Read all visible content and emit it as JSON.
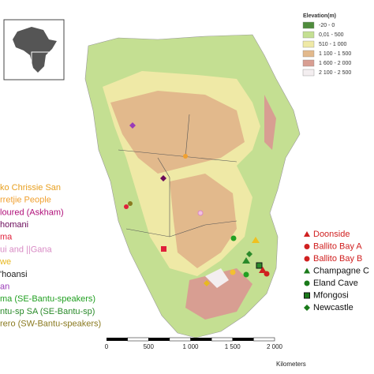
{
  "elevation_legend": {
    "title": "Elevation(m)",
    "classes": [
      {
        "label": "-20 - 0",
        "color": "#4f8c3c"
      },
      {
        "label": "0,01 - 500",
        "color": "#c4df92"
      },
      {
        "label": "510 - 1 000",
        "color": "#efe9a6"
      },
      {
        "label": "1 100 - 1 500",
        "color": "#e2b98c"
      },
      {
        "label": "1 600 - 2 000",
        "color": "#d89e92"
      },
      {
        "label": "2 100 - 2 500",
        "color": "#f3eef0"
      }
    ]
  },
  "population_legend": [
    {
      "label": "ko Chrissie San",
      "color": "#e8a020"
    },
    {
      "label": "rretjie People",
      "color": "#f0a030"
    },
    {
      "label": "loured (Askham)",
      "color": "#b0107a"
    },
    {
      "label": "homani",
      "color": "#6a0a5a"
    },
    {
      "label": "ma",
      "color": "#e0203a"
    },
    {
      "label": "ui and ||Gana",
      "color": "#d88ac4"
    },
    {
      "label": "we",
      "color": "#e8b820"
    },
    {
      "label": "'hoansi",
      "color": "#202020"
    },
    {
      "label": "an",
      "color": "#9a3ab8"
    },
    {
      "label": "ma (SE-Bantu-speakers)",
      "color": "#22a022"
    },
    {
      "label": "ntu-sp SA (SE-Bantu-sp)",
      "color": "#2a8a2a"
    },
    {
      "label": "rero (SW-Bantu-speakers)",
      "color": "#8a7a20"
    }
  ],
  "site_legend": [
    {
      "label": "Doonside",
      "color": "#d02020"
    },
    {
      "label": "Ballito Bay A",
      "color": "#d02020"
    },
    {
      "label": "Ballito Bay B",
      "color": "#d02020"
    },
    {
      "label": "Champagne C",
      "color": "#111111"
    },
    {
      "label": "Eland Cave",
      "color": "#111111"
    },
    {
      "label": "Mfongosi",
      "color": "#111111"
    },
    {
      "label": "Newcastle",
      "color": "#111111"
    }
  ],
  "scale_bar": {
    "labels": [
      "0",
      "500",
      "1 000",
      "1 500",
      "2 000"
    ],
    "unit": "Kilometers"
  }
}
